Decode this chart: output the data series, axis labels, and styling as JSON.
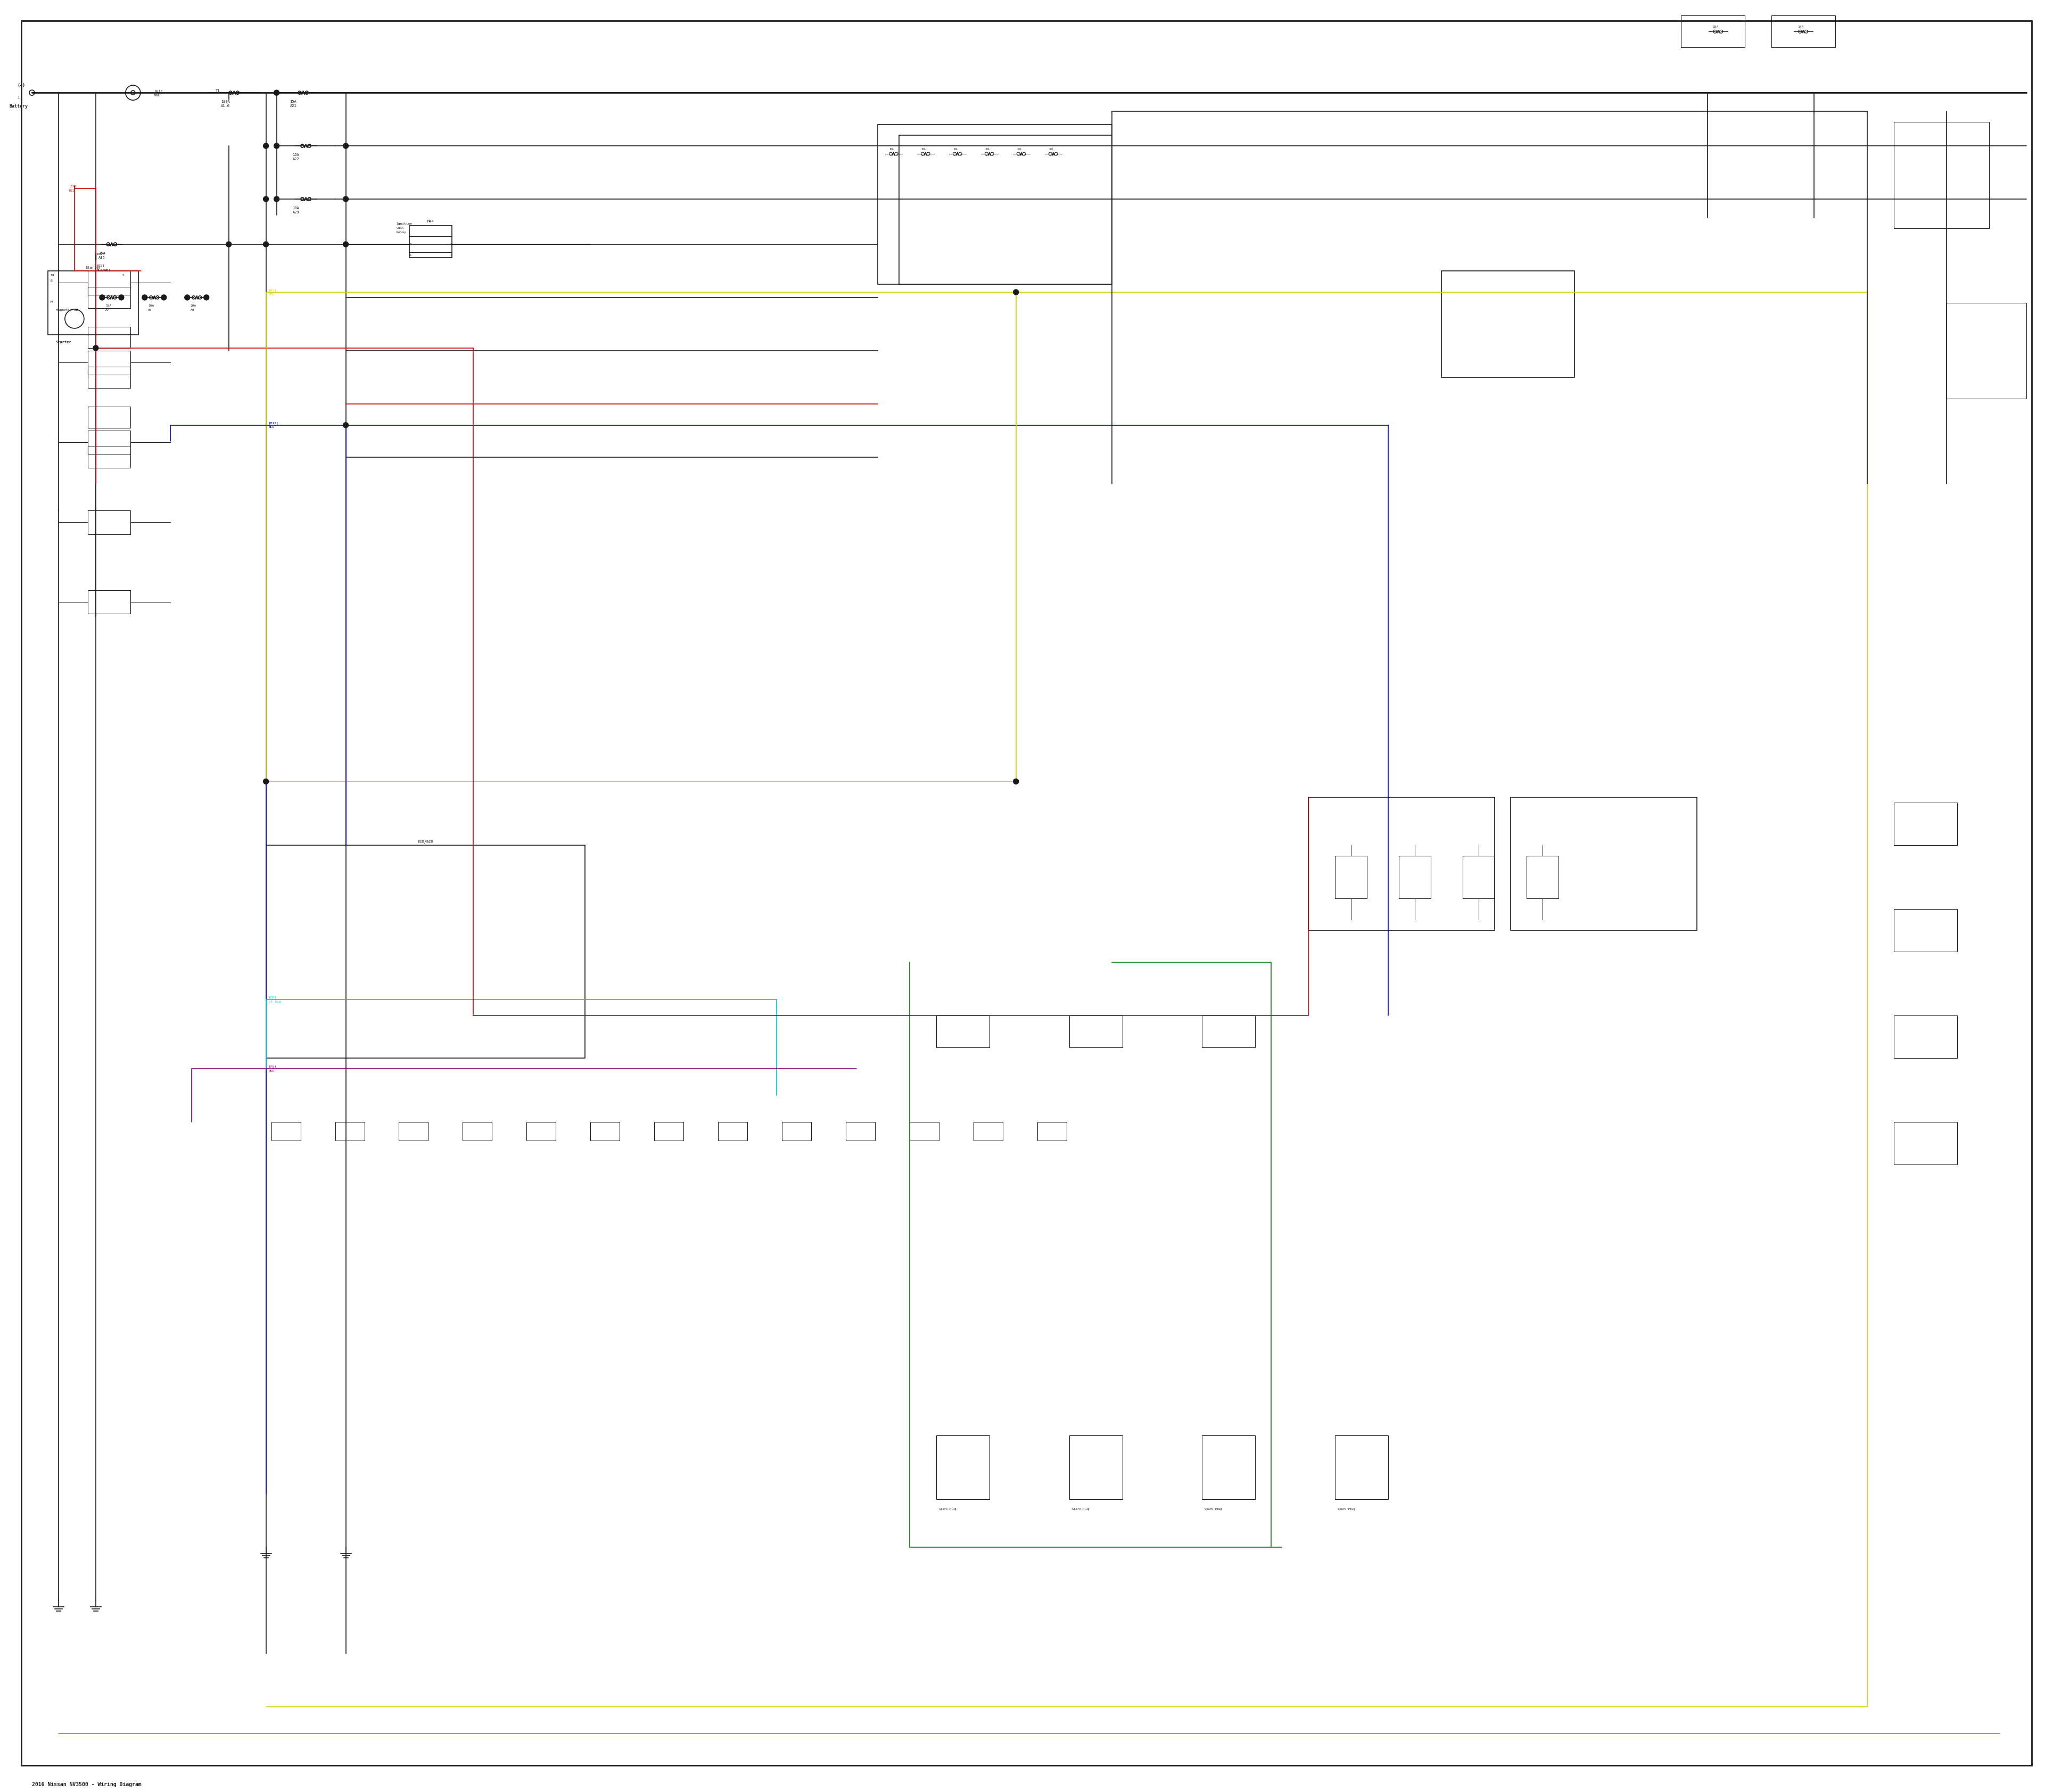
{
  "title": "2016 Nissan NV3500 Wiring Diagram",
  "bg_color": "#ffffff",
  "wire_color_black": "#1a1a1a",
  "wire_color_red": "#cc0000",
  "wire_color_blue": "#0000cc",
  "wire_color_yellow": "#cccc00",
  "wire_color_green": "#008800",
  "wire_color_cyan": "#00cccc",
  "wire_color_purple": "#880088",
  "wire_color_dark_yellow": "#999900",
  "lw_thin": 0.8,
  "lw_med": 1.2,
  "lw_thick": 2.0,
  "figw": 38.4,
  "figh": 33.5
}
